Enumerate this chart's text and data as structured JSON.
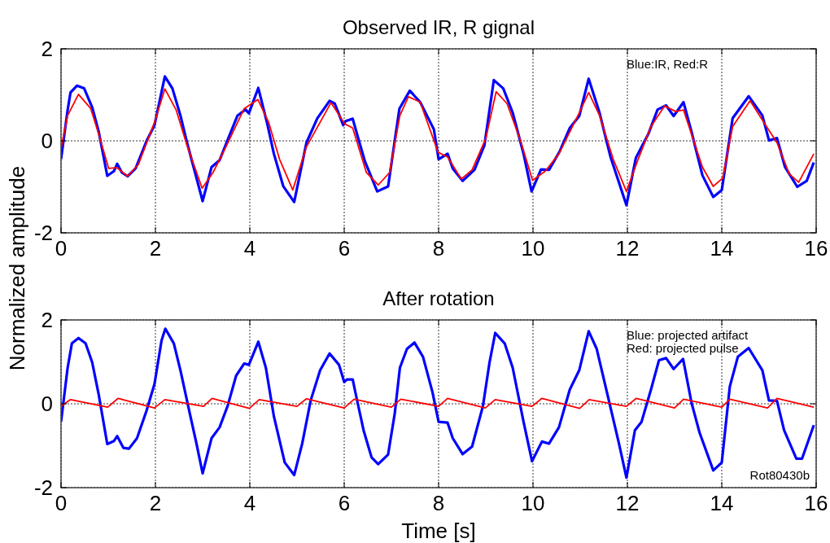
{
  "chart_data": [
    {
      "type": "line",
      "title": "Observed IR, R gignal",
      "ylabel": "Normalized amplitude",
      "xlim": [
        0,
        16
      ],
      "ylim": [
        -2,
        2
      ],
      "xticks": [
        0,
        2,
        4,
        6,
        8,
        10,
        12,
        14,
        16
      ],
      "yticks": [
        -2,
        0,
        2
      ],
      "grid": true,
      "annotations": [
        "Blue:IR, Red:R"
      ],
      "series": [
        {
          "color": "#0000ff",
          "x": [
            0,
            0.14,
            0.2,
            0.34,
            0.49,
            0.66,
            0.8,
            0.98,
            1.12,
            1.19,
            1.29,
            1.41,
            1.58,
            1.81,
            1.98,
            2.2,
            2.36,
            2.53,
            2.67,
            2.84,
            3.0,
            3.19,
            3.36,
            3.53,
            3.74,
            3.91,
            3.98,
            4.18,
            4.37,
            4.51,
            4.71,
            4.94,
            5.2,
            5.43,
            5.69,
            5.8,
            5.98,
            6.03,
            6.18,
            6.29,
            6.44,
            6.7,
            6.93,
            7.17,
            7.39,
            7.61,
            7.9,
            8.0,
            8.19,
            8.3,
            8.51,
            8.76,
            8.97,
            9.17,
            9.37,
            9.57,
            9.8,
            9.97,
            10.17,
            10.34,
            10.57,
            10.78,
            10.98,
            11.18,
            11.41,
            11.64,
            11.98,
            12.18,
            12.44,
            12.64,
            12.82,
            12.98,
            13.19,
            13.36,
            13.59,
            13.82,
            14.0,
            14.23,
            14.57,
            14.86,
            15.0,
            15.17,
            15.34,
            15.6,
            15.8,
            15.95
          ],
          "values": [
            -0.4,
            0.67,
            1.05,
            1.2,
            1.14,
            0.73,
            0.19,
            -0.76,
            -0.66,
            -0.5,
            -0.69,
            -0.77,
            -0.6,
            -0.01,
            0.34,
            1.4,
            1.14,
            0.55,
            -0.04,
            -0.69,
            -1.31,
            -0.57,
            -0.42,
            0.02,
            0.55,
            0.68,
            0.6,
            1.15,
            0.37,
            -0.28,
            -0.99,
            -1.33,
            -0.04,
            0.49,
            0.87,
            0.81,
            0.34,
            0.43,
            0.48,
            0.08,
            -0.45,
            -1.1,
            -0.99,
            0.7,
            1.09,
            0.84,
            0.25,
            -0.4,
            -0.28,
            -0.6,
            -0.87,
            -0.63,
            -0.1,
            1.32,
            1.14,
            0.61,
            -0.28,
            -1.1,
            -0.62,
            -0.63,
            -0.22,
            0.28,
            0.54,
            1.35,
            0.61,
            -0.34,
            -1.4,
            -0.37,
            0.14,
            0.68,
            0.77,
            0.54,
            0.84,
            0.19,
            -0.75,
            -1.22,
            -1.07,
            0.49,
            0.97,
            0.55,
            0.01,
            0.06,
            -0.57,
            -1.0,
            -0.87,
            -0.47
          ]
        },
        {
          "color": "#ff0000",
          "x": [
            0,
            0.14,
            0.37,
            0.63,
            0.8,
            1.01,
            1.18,
            1.41,
            1.64,
            1.98,
            2.2,
            2.44,
            2.67,
            2.99,
            3.22,
            3.48,
            3.88,
            4.17,
            4.4,
            4.63,
            4.91,
            5.2,
            5.72,
            6.01,
            6.18,
            6.47,
            6.72,
            6.96,
            7.18,
            7.36,
            7.61,
            7.99,
            8.19,
            8.48,
            8.71,
            9.0,
            9.22,
            9.45,
            9.74,
            9.99,
            10.26,
            10.55,
            10.98,
            11.18,
            11.41,
            11.7,
            11.98,
            12.21,
            12.5,
            12.79,
            13.02,
            13.19,
            13.59,
            13.82,
            14.02,
            14.23,
            14.6,
            14.91,
            15.17,
            15.43,
            15.63,
            15.95
          ],
          "values": [
            -0.16,
            0.55,
            1.01,
            0.7,
            0.14,
            -0.6,
            -0.58,
            -0.77,
            -0.51,
            0.4,
            1.13,
            0.67,
            -0.1,
            -1.03,
            -0.69,
            -0.16,
            0.7,
            0.9,
            0.4,
            -0.4,
            -1.07,
            -0.13,
            0.83,
            0.37,
            0.28,
            -0.69,
            -0.96,
            -0.69,
            0.55,
            0.96,
            0.84,
            -0.25,
            -0.35,
            -0.83,
            -0.63,
            0.05,
            1.07,
            0.81,
            -0.01,
            -0.86,
            -0.66,
            -0.28,
            0.61,
            1.05,
            0.55,
            -0.4,
            -1.1,
            -0.45,
            0.31,
            0.76,
            0.64,
            0.67,
            -0.57,
            -0.99,
            -0.81,
            0.31,
            0.87,
            0.37,
            -0.04,
            -0.72,
            -0.9,
            -0.28
          ]
        }
      ]
    },
    {
      "type": "line",
      "title": "After rotation",
      "xlabel": "Time [s]",
      "xlim": [
        0,
        16
      ],
      "ylim": [
        -2,
        2
      ],
      "xticks": [
        0,
        2,
        4,
        6,
        8,
        10,
        12,
        14,
        16
      ],
      "yticks": [
        -2,
        0,
        2
      ],
      "grid": true,
      "annotations": [
        "Blue: projected artifact",
        "Red: projected pulse",
        "Rot80430b"
      ],
      "series": [
        {
          "color": "#0000ff",
          "x": [
            0,
            0.14,
            0.23,
            0.37,
            0.52,
            0.66,
            0.8,
            0.98,
            1.12,
            1.19,
            1.32,
            1.44,
            1.61,
            1.81,
            1.98,
            2.13,
            2.21,
            2.39,
            2.53,
            2.73,
            2.87,
            3.0,
            3.19,
            3.36,
            3.53,
            3.71,
            3.88,
            3.98,
            4.18,
            4.34,
            4.51,
            4.74,
            4.94,
            5.11,
            5.29,
            5.49,
            5.69,
            5.89,
            6.0,
            6.06,
            6.18,
            6.26,
            6.41,
            6.58,
            6.72,
            6.93,
            7.07,
            7.18,
            7.33,
            7.49,
            7.67,
            7.87,
            8.0,
            8.19,
            8.3,
            8.51,
            8.71,
            8.94,
            9.08,
            9.2,
            9.4,
            9.57,
            9.8,
            9.98,
            10.19,
            10.34,
            10.55,
            10.78,
            10.98,
            11.18,
            11.35,
            11.58,
            11.81,
            11.98,
            12.16,
            12.3,
            12.5,
            12.67,
            12.82,
            12.98,
            13.18,
            13.36,
            13.53,
            13.82,
            14.0,
            14.17,
            14.34,
            14.57,
            14.86,
            15.0,
            15.17,
            15.32,
            15.58,
            15.7,
            15.95
          ],
          "values": [
            -0.43,
            0.86,
            1.44,
            1.57,
            1.44,
            0.99,
            0.21,
            -0.96,
            -0.89,
            -0.77,
            -1.05,
            -1.07,
            -0.82,
            -0.17,
            0.47,
            1.51,
            1.79,
            1.44,
            0.8,
            -0.24,
            -0.95,
            -1.66,
            -0.82,
            -0.56,
            -0.05,
            0.67,
            0.96,
            0.93,
            1.48,
            0.86,
            -0.3,
            -1.4,
            -1.7,
            -0.95,
            0.08,
            0.8,
            1.2,
            0.93,
            0.52,
            0.58,
            0.58,
            0.15,
            -0.63,
            -1.28,
            -1.44,
            -1.21,
            -0.24,
            0.86,
            1.31,
            1.46,
            1.12,
            0.28,
            -0.43,
            -0.45,
            -0.82,
            -1.2,
            -1.02,
            -0.05,
            0.99,
            1.69,
            1.44,
            0.86,
            -0.43,
            -1.37,
            -0.9,
            -0.95,
            -0.56,
            0.34,
            0.8,
            1.73,
            1.31,
            0.21,
            -0.89,
            -1.76,
            -0.63,
            -0.43,
            0.34,
            1.04,
            1.09,
            0.83,
            1.07,
            0.02,
            -0.69,
            -1.59,
            -1.4,
            0.41,
            1.12,
            1.33,
            0.8,
            0.08,
            0.07,
            -0.63,
            -1.31,
            -1.31,
            -0.51
          ]
        },
        {
          "color": "#ff0000",
          "x": [
            0,
            0.2,
            0.99,
            1.21,
            1.98,
            2.2,
            3.02,
            3.2,
            3.99,
            4.2,
            5.0,
            5.2,
            6.0,
            6.21,
            7.0,
            7.2,
            8.0,
            8.19,
            8.99,
            9.2,
            9.98,
            10.19,
            10.99,
            11.19,
            11.98,
            12.19,
            13.0,
            13.19,
            14.0,
            14.17,
            14.97,
            15.17,
            15.95
          ],
          "values": [
            -0.06,
            0.1,
            -0.08,
            0.13,
            -0.1,
            0.1,
            -0.06,
            0.13,
            -0.11,
            0.1,
            -0.06,
            0.12,
            -0.1,
            0.11,
            -0.08,
            0.11,
            -0.06,
            0.13,
            -0.1,
            0.1,
            -0.06,
            0.13,
            -0.11,
            0.1,
            -0.06,
            0.13,
            -0.1,
            0.11,
            -0.08,
            0.11,
            -0.1,
            0.13,
            -0.08
          ]
        }
      ]
    }
  ]
}
